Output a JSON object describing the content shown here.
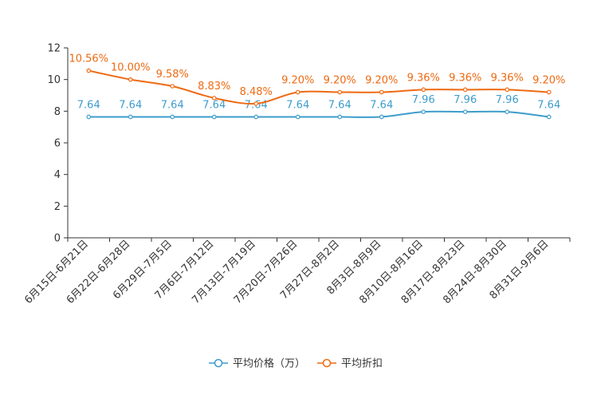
{
  "chart_data": {
    "type": "line",
    "title": "",
    "xlabel": "",
    "ylabel": "",
    "ylim": [
      0,
      12
    ],
    "yticks": [
      0,
      2,
      4,
      6,
      8,
      10,
      12
    ],
    "grid": false,
    "legend_position": "bottom-center",
    "categories": [
      "6月15日-6月21日",
      "6月22日-6月28日",
      "6月29日-7月5日",
      "7月6日-7月12日",
      "7月13日-7月19日",
      "7月20日-7月26日",
      "7月27日-8月2日",
      "8月3日-8月9日",
      "8月10日-8月16日",
      "8月17日-8月23日",
      "8月24日-8月30日",
      "8月31日-9月6日"
    ],
    "series": [
      {
        "name": "平均价格（万）",
        "color": "#3d9ccc",
        "values": [
          7.64,
          7.64,
          7.64,
          7.64,
          7.64,
          7.64,
          7.64,
          7.64,
          7.96,
          7.96,
          7.96,
          7.64
        ],
        "labels": [
          "7.64",
          "7.64",
          "7.64",
          "7.64",
          "7.64",
          "7.64",
          "7.64",
          "7.64",
          "7.96",
          "7.96",
          "7.96",
          "7.64"
        ]
      },
      {
        "name": "平均折扣",
        "color": "#ee6a12",
        "values": [
          10.56,
          10.0,
          9.58,
          8.83,
          8.48,
          9.2,
          9.2,
          9.2,
          9.36,
          9.36,
          9.36,
          9.2
        ],
        "labels": [
          "10.56%",
          "10.00%",
          "9.58%",
          "8.83%",
          "8.48%",
          "9.20%",
          "9.20%",
          "9.20%",
          "9.36%",
          "9.36%",
          "9.36%",
          "9.20%"
        ]
      }
    ]
  }
}
